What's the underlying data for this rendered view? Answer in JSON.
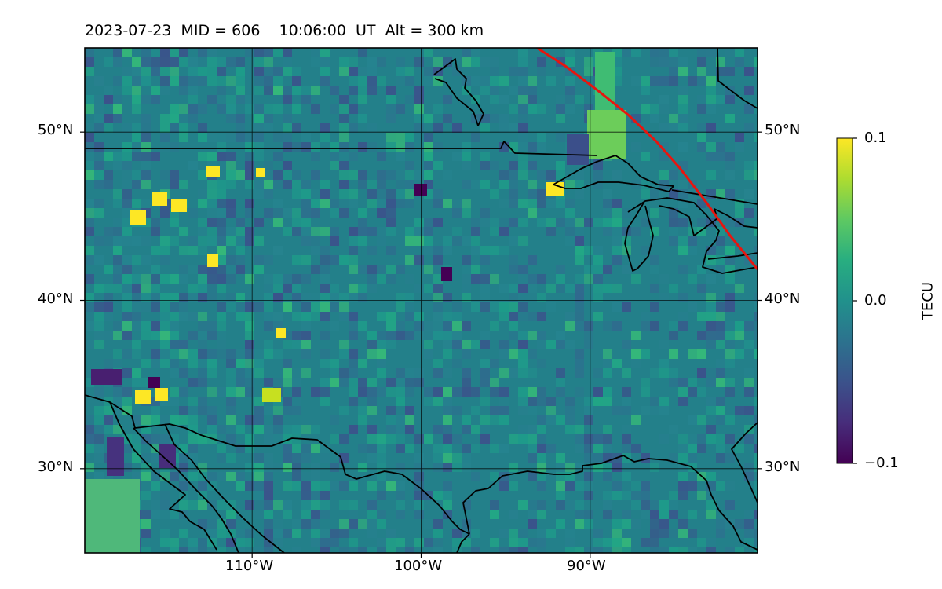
{
  "title": {
    "date": "2023-07-23",
    "mid": "MID = 606",
    "time": "10:06:00  UT",
    "alt": "Alt = 300 km"
  },
  "map": {
    "extent": {
      "lon_min": -119.9,
      "lon_max": -80.1,
      "lat_min": 25.0,
      "lat_max": 55.0
    },
    "gridlines": true,
    "lon_ticks": [
      {
        "value": -110,
        "label": "110°W"
      },
      {
        "value": -100,
        "label": "100°W"
      },
      {
        "value": -90,
        "label": "90°W"
      }
    ],
    "lat_ticks": [
      {
        "value": 50,
        "label": "50°N"
      },
      {
        "value": 40,
        "label": "40°N"
      },
      {
        "value": 30,
        "label": "30°N"
      }
    ],
    "field": "dTEC (TECU) over continental North America",
    "terminator_color": "#e8150f"
  },
  "colorbar": {
    "label": "TECU",
    "colormap": "viridis",
    "vmin": -0.1,
    "vmax": 0.1,
    "ticks": [
      "0.1",
      "0.0",
      "−0.1"
    ]
  }
}
